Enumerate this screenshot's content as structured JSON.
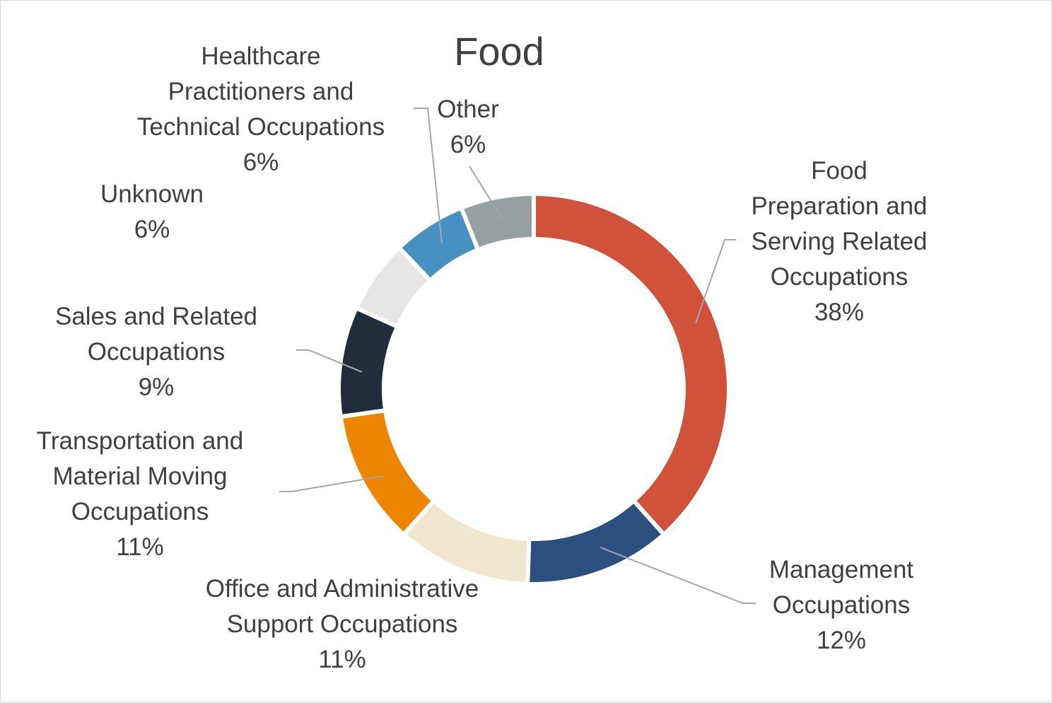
{
  "chart_data": {
    "type": "pie",
    "title": "Food",
    "slices": [
      {
        "name": "Food Preparation and Serving Related Occupations",
        "value": 38,
        "label": "38%",
        "color": "#d1523b",
        "lines": [
          "Food",
          "Preparation and",
          "Serving Related",
          "Occupations"
        ]
      },
      {
        "name": "Management Occupations",
        "value": 12,
        "label": "12%",
        "color": "#2c4f7f",
        "lines": [
          "Management",
          "Occupations"
        ]
      },
      {
        "name": "Office and Administrative Support Occupations",
        "value": 11,
        "label": "11%",
        "color": "#efe8cf",
        "lines": [
          "Office and Administrative",
          "Support Occupations"
        ]
      },
      {
        "name": "Transportation and Material Moving Occupations",
        "value": 11,
        "label": "11%",
        "color": "#ee8500",
        "lines": [
          "Transportation and",
          "Material Moving",
          "Occupations"
        ]
      },
      {
        "name": "Sales and Related Occupations",
        "value": 9,
        "label": "9%",
        "color": "#212c3d",
        "lines": [
          "Sales and Related",
          "Occupations"
        ]
      },
      {
        "name": "Unknown",
        "value": 6,
        "label": "6%",
        "color": "#e6e6e6",
        "lines": [
          "Unknown"
        ]
      },
      {
        "name": "Healthcare Practitioners and Technical Occupations",
        "value": 6,
        "label": "6%",
        "color": "#4592c0",
        "lines": [
          "Healthcare",
          "Practitioners and",
          "Technical Occupations"
        ]
      },
      {
        "name": "Other",
        "value": 6,
        "label": "6%",
        "color": "#969fa2",
        "lines": [
          "Other"
        ]
      }
    ],
    "leader_line_color": "#a6a6a6"
  }
}
